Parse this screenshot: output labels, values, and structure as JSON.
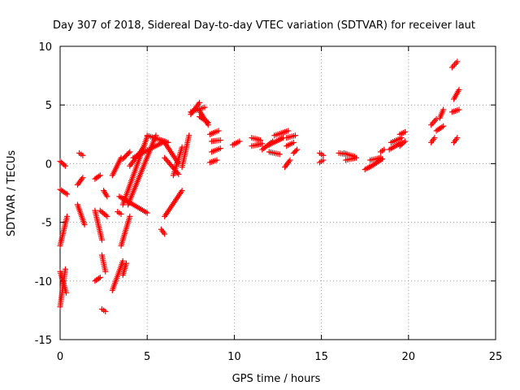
{
  "chart_data": {
    "type": "scatter",
    "title": "Day 307 of 2018, Sidereal Day-to-day VTEC variation (SDTVAR) for receiver laut",
    "xlabel": "GPS time / hours",
    "ylabel": "SDTVAR / TECUs",
    "xlim": [
      0,
      25
    ],
    "ylim": [
      -15,
      10
    ],
    "xticks": [
      0,
      5,
      10,
      15,
      20,
      25
    ],
    "yticks": [
      -15,
      -10,
      -5,
      0,
      5,
      10
    ],
    "grid": true,
    "marker": "+",
    "color": "#ff0000",
    "segments": [
      {
        "x": [
          0.0,
          0.3
        ],
        "y": [
          -12.2,
          -9.0
        ]
      },
      {
        "x": [
          0.0,
          0.4
        ],
        "y": [
          -7.0,
          -4.5
        ]
      },
      {
        "x": [
          0.0,
          0.4
        ],
        "y": [
          -2.2,
          -2.6
        ]
      },
      {
        "x": [
          0.0,
          0.3
        ],
        "y": [
          0.2,
          -0.2
        ]
      },
      {
        "x": [
          0.0,
          0.35
        ],
        "y": [
          -9.2,
          -11.0
        ]
      },
      {
        "x": [
          1.1,
          1.3
        ],
        "y": [
          0.9,
          0.7
        ]
      },
      {
        "x": [
          1.0,
          1.3
        ],
        "y": [
          -1.8,
          -1.2
        ]
      },
      {
        "x": [
          1.0,
          1.4
        ],
        "y": [
          -3.5,
          -5.2
        ]
      },
      {
        "x": [
          2.0,
          2.3
        ],
        "y": [
          -1.3,
          -1.0
        ]
      },
      {
        "x": [
          2.0,
          2.4
        ],
        "y": [
          -4.0,
          -6.5
        ]
      },
      {
        "x": [
          2.0,
          2.3
        ],
        "y": [
          -10.0,
          -9.7
        ]
      },
      {
        "x": [
          2.4,
          2.6
        ],
        "y": [
          -12.4,
          -12.6
        ]
      },
      {
        "x": [
          2.4,
          2.6
        ],
        "y": [
          -7.8,
          -9.2
        ]
      },
      {
        "x": [
          2.5,
          2.7
        ],
        "y": [
          -2.3,
          -2.8
        ]
      },
      {
        "x": [
          2.3,
          2.7
        ],
        "y": [
          -4.0,
          -4.5
        ]
      },
      {
        "x": [
          3.0,
          3.5
        ],
        "y": [
          -1.0,
          0.5
        ]
      },
      {
        "x": [
          3.0,
          3.6
        ],
        "y": [
          -10.8,
          -8.3
        ]
      },
      {
        "x": [
          3.3,
          3.5
        ],
        "y": [
          -4.1,
          -4.3
        ]
      },
      {
        "x": [
          3.6,
          3.8
        ],
        "y": [
          -9.5,
          -8.5
        ]
      },
      {
        "x": [
          3.5,
          4.0
        ],
        "y": [
          -7.0,
          -4.5
        ]
      },
      {
        "x": [
          3.4,
          5.0
        ],
        "y": [
          -2.8,
          -4.2
        ]
      },
      {
        "x": [
          3.6,
          5.0
        ],
        "y": [
          -3.5,
          2.3
        ]
      },
      {
        "x": [
          3.6,
          4.0
        ],
        "y": [
          0.4,
          1.0
        ]
      },
      {
        "x": [
          3.9,
          5.5
        ],
        "y": [
          -3.5,
          2.4
        ]
      },
      {
        "x": [
          4.2,
          6.0
        ],
        "y": [
          0.5,
          1.9
        ]
      },
      {
        "x": [
          4.0,
          4.8
        ],
        "y": [
          -0.2,
          1.4
        ]
      },
      {
        "x": [
          5.0,
          6.2
        ],
        "y": [
          2.4,
          1.8
        ]
      },
      {
        "x": [
          5.8,
          6.0
        ],
        "y": [
          -5.6,
          -6.0
        ]
      },
      {
        "x": [
          6.0,
          7.0
        ],
        "y": [
          -4.5,
          -2.3
        ]
      },
      {
        "x": [
          6.0,
          6.8
        ],
        "y": [
          1.8,
          0.0
        ]
      },
      {
        "x": [
          6.0,
          6.8
        ],
        "y": [
          0.5,
          -0.9
        ]
      },
      {
        "x": [
          6.5,
          7.0
        ],
        "y": [
          -1.0,
          1.4
        ]
      },
      {
        "x": [
          7.0,
          7.4
        ],
        "y": [
          -0.3,
          2.4
        ]
      },
      {
        "x": [
          7.5,
          8.3
        ],
        "y": [
          4.4,
          4.8
        ]
      },
      {
        "x": [
          7.5,
          8.0
        ],
        "y": [
          4.2,
          5.2
        ]
      },
      {
        "x": [
          8.0,
          8.5
        ],
        "y": [
          4.5,
          3.3
        ]
      },
      {
        "x": [
          8.0,
          8.5
        ],
        "y": [
          4.0,
          3.5
        ]
      },
      {
        "x": [
          8.6,
          9.1
        ],
        "y": [
          2.5,
          2.8
        ]
      },
      {
        "x": [
          8.7,
          9.2
        ],
        "y": [
          1.9,
          2.0
        ]
      },
      {
        "x": [
          8.7,
          9.2
        ],
        "y": [
          1.0,
          1.3
        ]
      },
      {
        "x": [
          8.6,
          9.0
        ],
        "y": [
          0.1,
          0.3
        ]
      },
      {
        "x": [
          9.9,
          10.3
        ],
        "y": [
          1.6,
          1.9
        ]
      },
      {
        "x": [
          11.0,
          11.5
        ],
        "y": [
          2.2,
          2.0
        ]
      },
      {
        "x": [
          11.0,
          11.6
        ],
        "y": [
          1.5,
          1.7
        ]
      },
      {
        "x": [
          11.6,
          12.2
        ],
        "y": [
          1.2,
          1.9
        ]
      },
      {
        "x": [
          12.0,
          12.8
        ],
        "y": [
          1.6,
          2.2
        ]
      },
      {
        "x": [
          12.3,
          13.1
        ],
        "y": [
          2.4,
          2.8
        ]
      },
      {
        "x": [
          12.0,
          12.6
        ],
        "y": [
          1.0,
          0.8
        ]
      },
      {
        "x": [
          13.0,
          13.4
        ],
        "y": [
          1.5,
          1.8
        ]
      },
      {
        "x": [
          13.0,
          13.5
        ],
        "y": [
          2.2,
          2.4
        ]
      },
      {
        "x": [
          12.9,
          13.2
        ],
        "y": [
          -0.3,
          0.3
        ]
      },
      {
        "x": [
          13.4,
          13.6
        ],
        "y": [
          0.9,
          1.2
        ]
      },
      {
        "x": [
          14.9,
          15.1
        ],
        "y": [
          0.9,
          0.7
        ]
      },
      {
        "x": [
          14.9,
          15.1
        ],
        "y": [
          0.1,
          0.3
        ]
      },
      {
        "x": [
          16.0,
          16.4
        ],
        "y": [
          0.9,
          0.8
        ]
      },
      {
        "x": [
          16.3,
          16.9
        ],
        "y": [
          0.9,
          0.6
        ]
      },
      {
        "x": [
          16.4,
          17.0
        ],
        "y": [
          0.3,
          0.5
        ]
      },
      {
        "x": [
          17.5,
          18.0
        ],
        "y": [
          -0.5,
          -0.1
        ]
      },
      {
        "x": [
          17.8,
          18.4
        ],
        "y": [
          0.3,
          0.5
        ]
      },
      {
        "x": [
          18.0,
          18.5
        ],
        "y": [
          -0.1,
          0.4
        ]
      },
      {
        "x": [
          18.4,
          18.6
        ],
        "y": [
          1.0,
          1.2
        ]
      },
      {
        "x": [
          18.9,
          19.6
        ],
        "y": [
          1.2,
          1.8
        ]
      },
      {
        "x": [
          19.0,
          19.6
        ],
        "y": [
          1.8,
          2.2
        ]
      },
      {
        "x": [
          19.5,
          19.8
        ],
        "y": [
          2.5,
          2.7
        ]
      },
      {
        "x": [
          19.5,
          19.8
        ],
        "y": [
          1.5,
          1.9
        ]
      },
      {
        "x": [
          21.3,
          21.5
        ],
        "y": [
          1.8,
          2.2
        ]
      },
      {
        "x": [
          21.3,
          21.6
        ],
        "y": [
          3.3,
          3.8
        ]
      },
      {
        "x": [
          21.6,
          22.0
        ],
        "y": [
          2.8,
          3.2
        ]
      },
      {
        "x": [
          21.8,
          22.0
        ],
        "y": [
          3.9,
          4.6
        ]
      },
      {
        "x": [
          22.5,
          22.8
        ],
        "y": [
          8.2,
          8.7
        ]
      },
      {
        "x": [
          22.5,
          22.9
        ],
        "y": [
          4.4,
          4.6
        ]
      },
      {
        "x": [
          22.6,
          22.9
        ],
        "y": [
          5.5,
          6.3
        ]
      },
      {
        "x": [
          22.6,
          22.8
        ],
        "y": [
          1.8,
          2.2
        ]
      }
    ]
  }
}
